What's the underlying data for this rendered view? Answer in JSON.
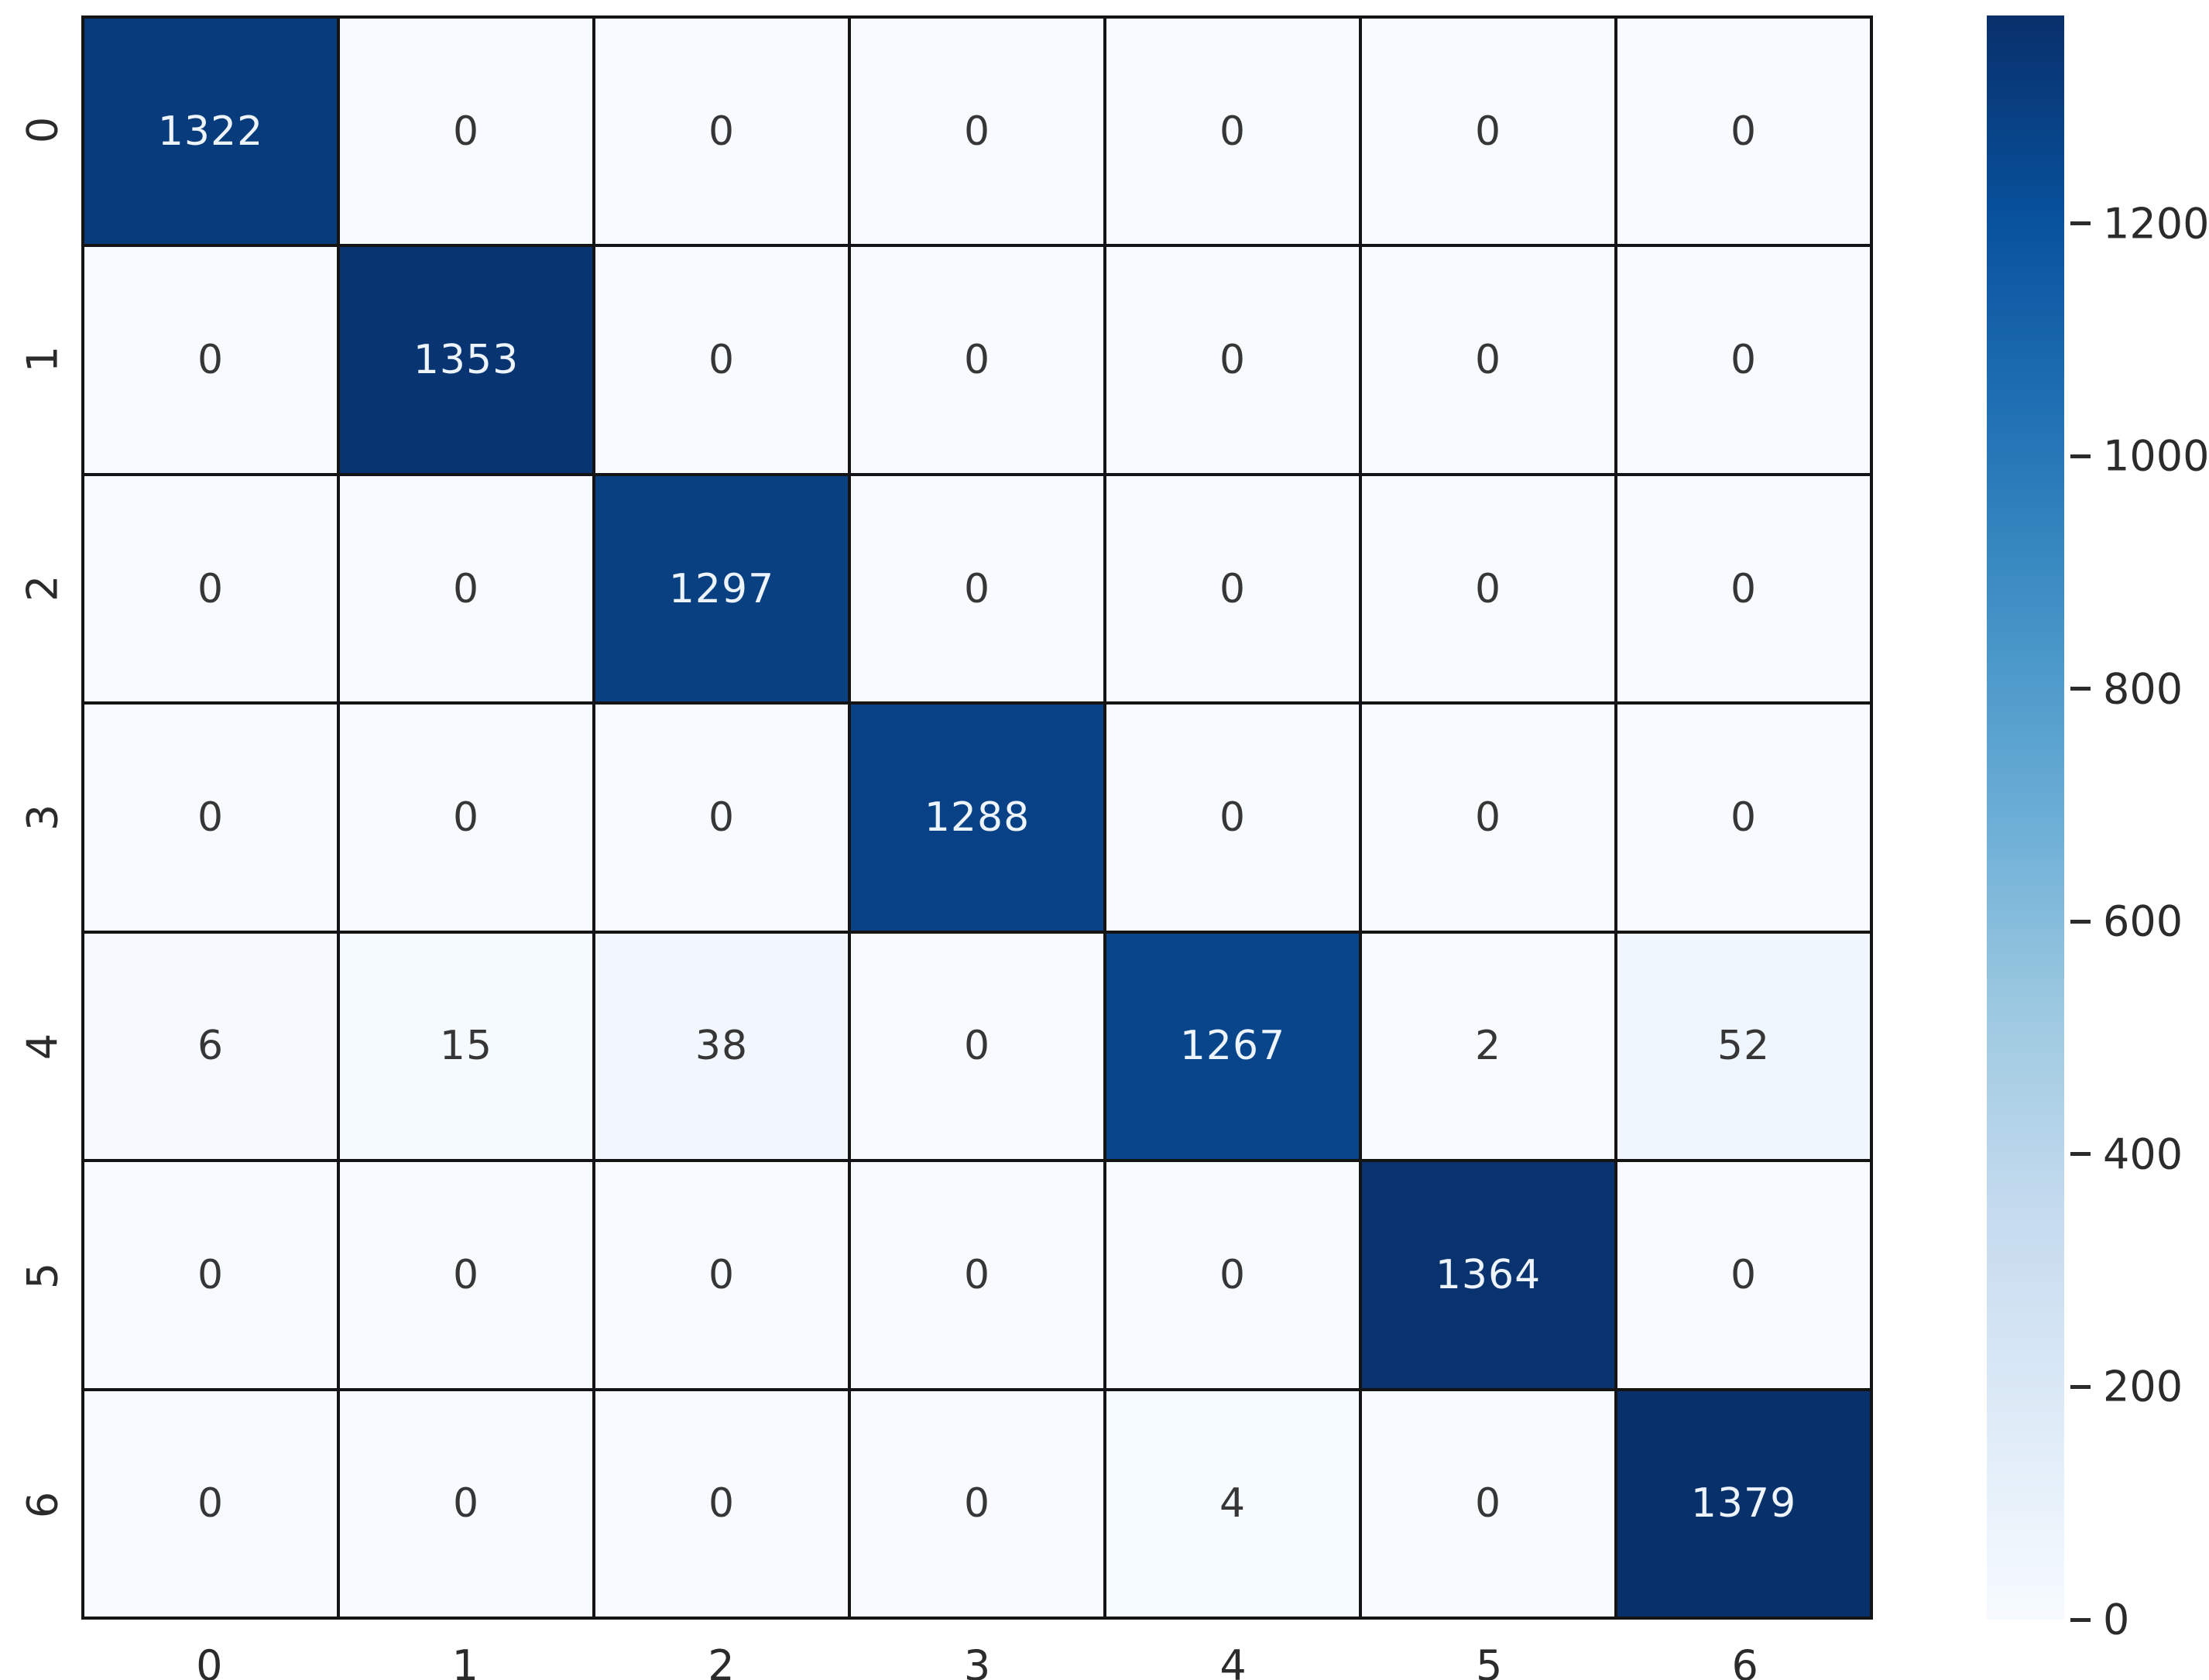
{
  "chart_data": {
    "type": "heatmap",
    "title": "",
    "xlabel": "",
    "ylabel": "",
    "x_tick_labels": [
      "0",
      "1",
      "2",
      "3",
      "4",
      "5",
      "6"
    ],
    "y_tick_labels": [
      "0",
      "1",
      "2",
      "3",
      "4",
      "5",
      "6"
    ],
    "matrix": [
      [
        1322,
        0,
        0,
        0,
        0,
        0,
        0
      ],
      [
        0,
        1353,
        0,
        0,
        0,
        0,
        0
      ],
      [
        0,
        0,
        1297,
        0,
        0,
        0,
        0
      ],
      [
        0,
        0,
        0,
        1288,
        0,
        0,
        0
      ],
      [
        6,
        15,
        38,
        0,
        1267,
        2,
        52
      ],
      [
        0,
        0,
        0,
        0,
        0,
        1364,
        0
      ],
      [
        0,
        0,
        0,
        0,
        4,
        0,
        1379
      ]
    ],
    "vmin": 0,
    "vmax": 1379,
    "grid_on": true,
    "legend_position": "colorbar-right",
    "colorbar": {
      "ticks": [
        0,
        200,
        400,
        600,
        800,
        1000,
        1200
      ],
      "tick_labels": [
        "0",
        "200",
        "400",
        "600",
        "800",
        "1000",
        "1200"
      ]
    },
    "colormap": {
      "name": "Blues",
      "stops": [
        {
          "pos": 0.0,
          "color": "#f7fbff"
        },
        {
          "pos": 0.125,
          "color": "#deebf7"
        },
        {
          "pos": 0.25,
          "color": "#c6dbef"
        },
        {
          "pos": 0.375,
          "color": "#9ecae1"
        },
        {
          "pos": 0.5,
          "color": "#6baed6"
        },
        {
          "pos": 0.625,
          "color": "#4292c6"
        },
        {
          "pos": 0.75,
          "color": "#2171b5"
        },
        {
          "pos": 0.875,
          "color": "#08519c"
        },
        {
          "pos": 1.0,
          "color": "#08306b"
        }
      ]
    },
    "style": {
      "grid_line_color": "#141414",
      "annotation_dark_text": "#363636",
      "annotation_light_text": "#eef4fb",
      "axis_label_color": "#2b2b2b",
      "background": "#ffffff"
    }
  }
}
